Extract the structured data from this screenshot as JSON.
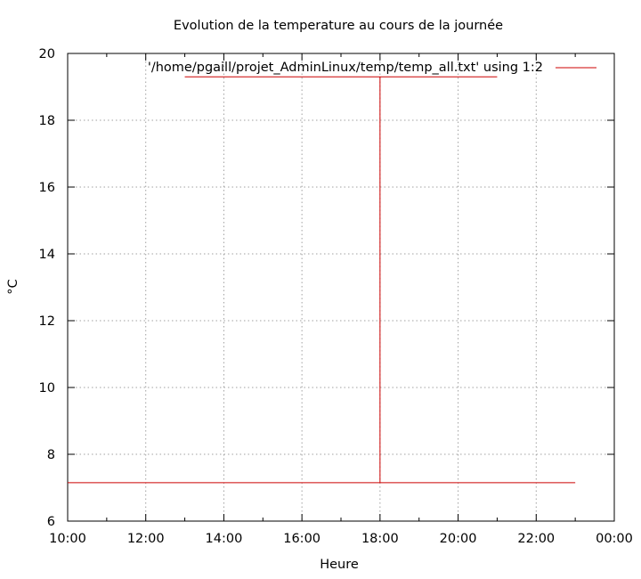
{
  "chart_data": {
    "type": "line",
    "title": "Evolution de la temperature au cours de la journée",
    "xlabel": "Heure",
    "ylabel": "°C",
    "xlim": [
      10,
      24
    ],
    "ylim": [
      6,
      20
    ],
    "x_tick_step": 2,
    "x_minor_step": 1,
    "y_tick_step": 2,
    "x_ticks": [
      "10:00",
      "12:00",
      "14:00",
      "16:00",
      "18:00",
      "20:00",
      "22:00",
      "00:00"
    ],
    "y_ticks": [
      "6",
      "8",
      "10",
      "12",
      "14",
      "16",
      "18",
      "20"
    ],
    "grid": true,
    "legend_position": "top-right",
    "series": [
      {
        "name": "'/home/pgaill/projet_AdminLinux/temp/temp_all.txt' using 1:2",
        "color": "#cc0000",
        "segments": [
          [
            [
              10,
              7.15
            ],
            [
              23,
              7.15
            ]
          ],
          [
            [
              13,
              19.3
            ],
            [
              21,
              19.3
            ]
          ],
          [
            [
              18,
              7.15
            ],
            [
              18,
              19.3
            ]
          ]
        ]
      }
    ]
  }
}
